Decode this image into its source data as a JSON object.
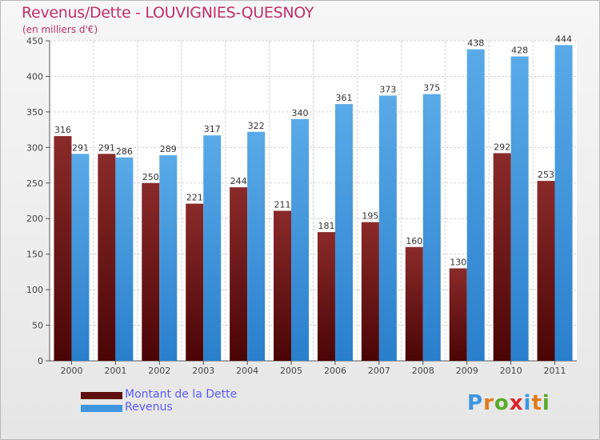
{
  "title": "Revenus/Dette - LOUVIGNIES-QUESNOY",
  "subtitle": "(en milliers d'€)",
  "colors": {
    "dette": "#7a1c1c",
    "revenus": "#3d96e0",
    "title": "#c0306a",
    "legend_text": "#5b5bff"
  },
  "legend": [
    {
      "label": "Montant de la Dette",
      "color": "#5e0f0f"
    },
    {
      "label": "Revenus",
      "color": "#3d96e0"
    }
  ],
  "logo": {
    "text": "Proxiti"
  },
  "chart_data": {
    "type": "bar",
    "title": "Revenus/Dette - LOUVIGNIES-QUESNOY",
    "subtitle": "(en milliers d'€)",
    "categories": [
      "2000",
      "2001",
      "2002",
      "2003",
      "2004",
      "2005",
      "2006",
      "2007",
      "2008",
      "2009",
      "2010",
      "2011"
    ],
    "series": [
      {
        "name": "Montant de la Dette",
        "values": [
          316,
          291,
          250,
          221,
          244,
          211,
          181,
          195,
          160,
          130,
          292,
          253
        ]
      },
      {
        "name": "Revenus",
        "values": [
          291,
          286,
          289,
          317,
          322,
          340,
          361,
          373,
          375,
          438,
          428,
          444
        ]
      }
    ],
    "ylim": [
      0,
      450
    ],
    "yticks": [
      0,
      50,
      100,
      150,
      200,
      250,
      300,
      350,
      400,
      450
    ],
    "grid": true,
    "legend_position": "bottom-left"
  }
}
